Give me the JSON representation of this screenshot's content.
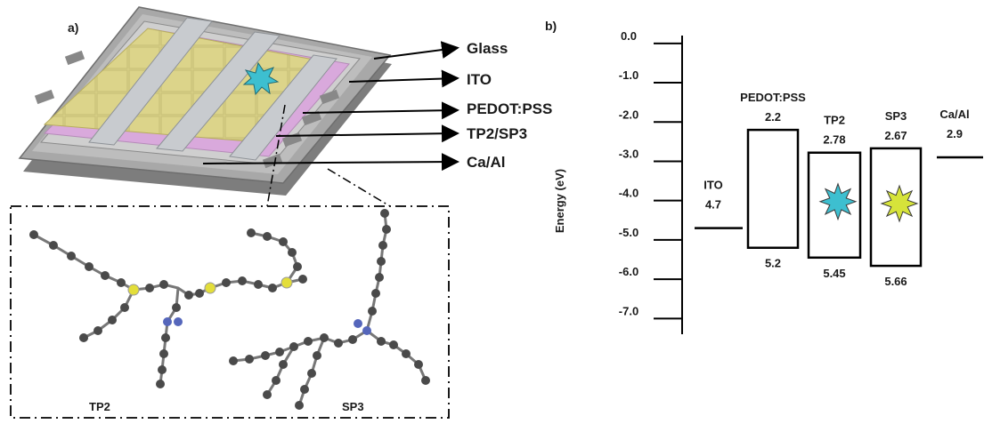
{
  "panel_a": {
    "label": "a)",
    "layers": [
      "Glass",
      "ITO",
      "PEDOT:PSS",
      "TP2/SP3",
      "Ca/Al"
    ],
    "molecules": [
      "TP2",
      "SP3"
    ],
    "colors": {
      "active_layer": "#dcd48a",
      "pedot_layer": "#d9a9dc",
      "electrode": "#c8cbcf",
      "frame": "#9a9a9a",
      "emission_star": "#3dbfd0"
    }
  },
  "panel_b": {
    "label": "b)",
    "y_axis_title": "Energy (eV)",
    "ticks": [
      "0.0",
      "-1.0",
      "-2.0",
      "-3.0",
      "-4.0",
      "-5.0",
      "-6.0",
      "-7.0"
    ],
    "tick_values": [
      0,
      -1,
      -2,
      -3,
      -4,
      -5,
      -6,
      -7
    ],
    "ylim": [
      -7.4,
      0.2
    ],
    "levels": [
      {
        "name": "ITO",
        "type": "line",
        "value": 4.7,
        "value_label": "4.7"
      },
      {
        "name": "PEDOT:PSS",
        "type": "box",
        "top": 2.2,
        "bottom": 5.2,
        "top_label": "2.2",
        "bottom_label": "5.2"
      },
      {
        "name": "TP2",
        "type": "box",
        "top": 2.78,
        "bottom": 5.45,
        "top_label": "2.78",
        "bottom_label": "5.45",
        "star_color": "#3dbfd0"
      },
      {
        "name": "SP3",
        "type": "box",
        "top": 2.67,
        "bottom": 5.66,
        "top_label": "2.67",
        "bottom_label": "5.66",
        "star_color": "#d6e33a"
      },
      {
        "name": "Ca/Al",
        "type": "line",
        "value": 2.9,
        "value_label": "2.9"
      }
    ]
  }
}
